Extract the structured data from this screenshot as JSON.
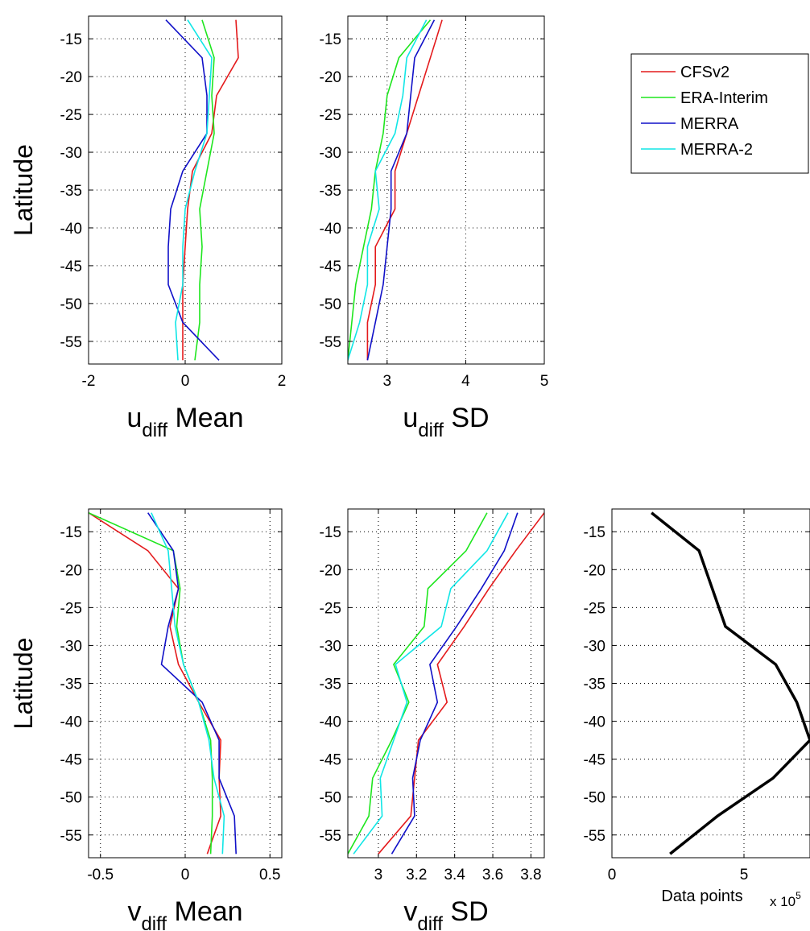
{
  "colors": {
    "CFSv2": "#e41a1c",
    "ERA-Interim": "#1ee61e",
    "MERRA": "#1010c8",
    "MERRA-2": "#10e6e6",
    "data_points": "#000000"
  },
  "legend": {
    "placement": "right of top row",
    "entries": [
      "CFSv2",
      "ERA-Interim",
      "MERRA",
      "MERRA-2"
    ]
  },
  "chart_data": [
    {
      "id": "u_mean",
      "type": "line",
      "orientation": "x-vs-latitude",
      "xlabel": "u",
      "xlabel_sub": "diff",
      "xlabel_suffix": "Mean",
      "ylabel": "Latitude",
      "xlim": [
        -2,
        2
      ],
      "ylim": [
        -58,
        -12
      ],
      "xticks": [
        -2,
        0,
        2
      ],
      "xtick_labels": [
        "-2",
        "0",
        "2"
      ],
      "yticks": [
        -15,
        -20,
        -25,
        -30,
        -35,
        -40,
        -45,
        -50,
        -55
      ],
      "ytick_labels": [
        "-15",
        "-20",
        "-25",
        "-30",
        "-35",
        "-40",
        "-45",
        "-50",
        "-55"
      ],
      "grid": true,
      "series": [
        {
          "name": "CFSv2",
          "x": [
            1.05,
            1.1,
            0.65,
            0.55,
            0.15,
            0.05,
            0.0,
            -0.05,
            -0.05,
            -0.05
          ],
          "y": [
            -12.5,
            -17.5,
            -22.5,
            -27.5,
            -32.5,
            -37.5,
            -42.5,
            -47.5,
            -52.5,
            -57.5
          ]
        },
        {
          "name": "ERA-Interim",
          "x": [
            0.35,
            0.6,
            0.55,
            0.6,
            0.45,
            0.3,
            0.35,
            0.3,
            0.3,
            0.2
          ],
          "y": [
            -12.5,
            -17.5,
            -22.5,
            -27.5,
            -32.5,
            -37.5,
            -42.5,
            -47.5,
            -52.5,
            -57.5
          ]
        },
        {
          "name": "MERRA",
          "x": [
            -0.4,
            0.35,
            0.45,
            0.45,
            -0.05,
            -0.3,
            -0.35,
            -0.35,
            -0.05,
            0.7
          ],
          "y": [
            -12.5,
            -17.5,
            -22.5,
            -27.5,
            -32.5,
            -37.5,
            -42.5,
            -47.5,
            -52.5,
            -57.5
          ]
        },
        {
          "name": "MERRA-2",
          "x": [
            0.05,
            0.55,
            0.5,
            0.45,
            0.2,
            0.0,
            -0.05,
            -0.05,
            -0.2,
            -0.15
          ],
          "y": [
            -12.5,
            -17.5,
            -22.5,
            -27.5,
            -32.5,
            -37.5,
            -42.5,
            -47.5,
            -52.5,
            -57.5
          ]
        }
      ]
    },
    {
      "id": "u_sd",
      "type": "line",
      "orientation": "x-vs-latitude",
      "xlabel": "u",
      "xlabel_sub": "diff",
      "xlabel_suffix": "SD",
      "ylabel": "",
      "xlim": [
        2.5,
        5
      ],
      "ylim": [
        -58,
        -12
      ],
      "xticks": [
        3,
        4,
        5
      ],
      "xtick_labels": [
        "3",
        "4",
        "5"
      ],
      "yticks": [
        -15,
        -20,
        -25,
        -30,
        -35,
        -40,
        -45,
        -50,
        -55
      ],
      "ytick_labels": [
        "-15",
        "-20",
        "-25",
        "-30",
        "-35",
        "-40",
        "-45",
        "-50",
        "-55"
      ],
      "grid": true,
      "series": [
        {
          "name": "CFSv2",
          "x": [
            3.7,
            3.55,
            3.4,
            3.25,
            3.1,
            3.1,
            2.85,
            2.85,
            2.75,
            2.75
          ],
          "y": [
            -12.5,
            -17.5,
            -22.5,
            -27.5,
            -32.5,
            -37.5,
            -42.5,
            -47.5,
            -52.5,
            -57.5
          ]
        },
        {
          "name": "ERA-Interim",
          "x": [
            3.55,
            3.15,
            3.0,
            2.95,
            2.85,
            2.8,
            2.7,
            2.6,
            2.55,
            2.5
          ],
          "y": [
            -12.5,
            -17.5,
            -22.5,
            -27.5,
            -32.5,
            -37.5,
            -42.5,
            -47.5,
            -52.5,
            -57.5
          ]
        },
        {
          "name": "MERRA",
          "x": [
            3.6,
            3.35,
            3.3,
            3.25,
            3.05,
            3.05,
            3.0,
            2.95,
            2.85,
            2.75
          ],
          "y": [
            -12.5,
            -17.5,
            -22.5,
            -27.5,
            -32.5,
            -37.5,
            -42.5,
            -47.5,
            -52.5,
            -57.5
          ]
        },
        {
          "name": "MERRA-2",
          "x": [
            3.5,
            3.25,
            3.2,
            3.1,
            2.85,
            2.9,
            2.75,
            2.75,
            2.65,
            2.5
          ],
          "y": [
            -12.5,
            -17.5,
            -22.5,
            -27.5,
            -32.5,
            -37.5,
            -42.5,
            -47.5,
            -52.5,
            -57.5
          ]
        }
      ]
    },
    {
      "id": "v_mean",
      "type": "line",
      "orientation": "x-vs-latitude",
      "xlabel": "v",
      "xlabel_sub": "diff",
      "xlabel_suffix": "Mean",
      "ylabel": "Latitude",
      "xlim": [
        -0.57,
        0.57
      ],
      "ylim": [
        -58,
        -12
      ],
      "xticks": [
        -0.5,
        0,
        0.5
      ],
      "xtick_labels": [
        "-0.5",
        "0",
        "0.5"
      ],
      "yticks": [
        -15,
        -20,
        -25,
        -30,
        -35,
        -40,
        -45,
        -50,
        -55
      ],
      "ytick_labels": [
        "-15",
        "-20",
        "-25",
        "-30",
        "-35",
        "-40",
        "-45",
        "-50",
        "-55"
      ],
      "grid": true,
      "series": [
        {
          "name": "CFSv2",
          "x": [
            -0.57,
            -0.22,
            -0.04,
            -0.09,
            -0.04,
            0.08,
            0.21,
            0.2,
            0.21,
            0.13
          ],
          "y": [
            -12.5,
            -17.5,
            -22.5,
            -27.5,
            -32.5,
            -37.5,
            -42.5,
            -47.5,
            -52.5,
            -57.5
          ]
        },
        {
          "name": "ERA-Interim",
          "x": [
            -0.57,
            -0.07,
            -0.03,
            -0.05,
            -0.01,
            0.08,
            0.15,
            0.16,
            0.16,
            0.15
          ],
          "y": [
            -12.5,
            -17.5,
            -22.5,
            -27.5,
            -32.5,
            -37.5,
            -42.5,
            -47.5,
            -52.5,
            -57.5
          ]
        },
        {
          "name": "MERRA",
          "x": [
            -0.22,
            -0.07,
            -0.04,
            -0.1,
            -0.14,
            0.1,
            0.2,
            0.2,
            0.29,
            0.3
          ],
          "y": [
            -12.5,
            -17.5,
            -22.5,
            -27.5,
            -32.5,
            -37.5,
            -42.5,
            -47.5,
            -52.5,
            -57.5
          ]
        },
        {
          "name": "MERRA-2",
          "x": [
            -0.2,
            -0.1,
            -0.08,
            -0.06,
            -0.01,
            0.08,
            0.14,
            0.17,
            0.23,
            0.22
          ],
          "y": [
            -12.5,
            -17.5,
            -22.5,
            -27.5,
            -32.5,
            -37.5,
            -42.5,
            -47.5,
            -52.5,
            -57.5
          ]
        }
      ]
    },
    {
      "id": "v_sd",
      "type": "line",
      "orientation": "x-vs-latitude",
      "xlabel": "v",
      "xlabel_sub": "diff",
      "xlabel_suffix": "SD",
      "ylabel": "",
      "xlim": [
        2.84,
        3.87
      ],
      "ylim": [
        -58,
        -12
      ],
      "xticks": [
        3,
        3.2,
        3.4,
        3.6,
        3.8
      ],
      "xtick_labels": [
        "3",
        "3.2",
        "3.4",
        "3.6",
        "3.8"
      ],
      "yticks": [
        -15,
        -20,
        -25,
        -30,
        -35,
        -40,
        -45,
        -50,
        -55
      ],
      "ytick_labels": [
        "-15",
        "-20",
        "-25",
        "-30",
        "-35",
        "-40",
        "-45",
        "-50",
        "-55"
      ],
      "grid": true,
      "series": [
        {
          "name": "CFSv2",
          "x": [
            3.87,
            3.72,
            3.58,
            3.45,
            3.31,
            3.36,
            3.21,
            3.19,
            3.17,
            3.0
          ],
          "y": [
            -12.5,
            -17.5,
            -22.5,
            -27.5,
            -32.5,
            -37.5,
            -42.5,
            -47.5,
            -52.5,
            -57.5
          ]
        },
        {
          "name": "ERA-Interim",
          "x": [
            3.57,
            3.46,
            3.26,
            3.24,
            3.08,
            3.16,
            3.07,
            2.97,
            2.95,
            2.84
          ],
          "y": [
            -12.5,
            -17.5,
            -22.5,
            -27.5,
            -32.5,
            -37.5,
            -42.5,
            -47.5,
            -52.5,
            -57.5
          ]
        },
        {
          "name": "MERRA",
          "x": [
            3.73,
            3.66,
            3.54,
            3.41,
            3.27,
            3.31,
            3.22,
            3.18,
            3.19,
            3.07
          ],
          "y": [
            -12.5,
            -17.5,
            -22.5,
            -27.5,
            -32.5,
            -37.5,
            -42.5,
            -47.5,
            -52.5,
            -57.5
          ]
        },
        {
          "name": "MERRA-2",
          "x": [
            3.68,
            3.57,
            3.38,
            3.33,
            3.09,
            3.15,
            3.08,
            3.01,
            3.02,
            2.87
          ],
          "y": [
            -12.5,
            -17.5,
            -22.5,
            -27.5,
            -32.5,
            -37.5,
            -42.5,
            -47.5,
            -52.5,
            -57.5
          ]
        }
      ]
    },
    {
      "id": "data_points",
      "type": "line",
      "orientation": "x-vs-latitude",
      "xlabel": "Data points",
      "xlabel_sub": "",
      "xlabel_suffix": "",
      "x_multiplier_base": "x 10",
      "x_multiplier_exp": "5",
      "ylabel": "",
      "xlim": [
        0,
        7.5
      ],
      "ylim": [
        -58,
        -12
      ],
      "xticks": [
        0,
        5
      ],
      "xtick_labels": [
        "0",
        "5"
      ],
      "yticks": [
        -15,
        -20,
        -25,
        -30,
        -35,
        -40,
        -45,
        -50,
        -55
      ],
      "ytick_labels": [
        "-15",
        "-20",
        "-25",
        "-30",
        "-35",
        "-40",
        "-45",
        "-50",
        "-55"
      ],
      "grid": true,
      "series": [
        {
          "name": "",
          "x": [
            1.5,
            3.3,
            3.8,
            4.3,
            6.2,
            7.0,
            7.5,
            6.1,
            4.0,
            2.2
          ],
          "y": [
            -12.5,
            -17.5,
            -22.5,
            -27.5,
            -32.5,
            -37.5,
            -42.5,
            -47.5,
            -52.5,
            -57.5
          ]
        }
      ]
    }
  ]
}
